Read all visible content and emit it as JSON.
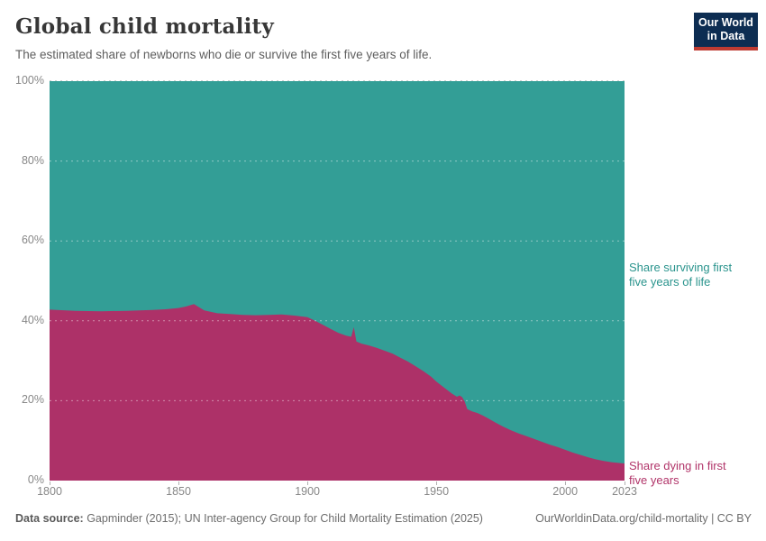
{
  "header": {
    "title": "Global child mortality",
    "subtitle": "The estimated share of newborns who die or survive the first five years of life.",
    "logo": {
      "line1": "Our World",
      "line2": "in Data",
      "bg_color": "#0d2d52",
      "accent_color": "#bf3b32"
    }
  },
  "chart_data": {
    "type": "area",
    "stacked": true,
    "percent_stacked": true,
    "title": "Global child mortality",
    "xlabel": "",
    "ylabel": "",
    "xlim": [
      1800,
      2023
    ],
    "ylim": [
      0,
      100
    ],
    "grid": "dashed horizontal gridlines at 20/40/60/80/100%",
    "legend_position": "right-side annotations next to each band",
    "x": [
      1800,
      1810,
      1820,
      1830,
      1840,
      1845,
      1850,
      1853,
      1856,
      1858,
      1860,
      1865,
      1870,
      1875,
      1880,
      1885,
      1890,
      1895,
      1900,
      1903,
      1906,
      1909,
      1912,
      1915,
      1917,
      1918,
      1919,
      1921,
      1924,
      1927,
      1930,
      1933,
      1936,
      1939,
      1942,
      1945,
      1948,
      1950,
      1952,
      1954,
      1956,
      1958,
      1959,
      1960,
      1961,
      1962,
      1964,
      1966,
      1968,
      1970,
      1973,
      1976,
      1979,
      1982,
      1985,
      1988,
      1991,
      1994,
      1997,
      2000,
      2003,
      2006,
      2009,
      2012,
      2015,
      2018,
      2021,
      2023
    ],
    "series": [
      {
        "name": "Share dying in first five years",
        "color": "#ad3168",
        "values": [
          42.8,
          42.5,
          42.4,
          42.5,
          42.7,
          42.9,
          43.2,
          43.6,
          44.2,
          43.4,
          42.6,
          41.9,
          41.7,
          41.5,
          41.4,
          41.5,
          41.6,
          41.3,
          40.9,
          40.0,
          39.0,
          38.0,
          37.0,
          36.3,
          36.0,
          38.4,
          34.8,
          34.3,
          33.8,
          33.2,
          32.5,
          31.8,
          30.8,
          29.8,
          28.6,
          27.4,
          26.0,
          24.8,
          23.8,
          22.8,
          21.8,
          21.0,
          21.3,
          20.9,
          19.8,
          17.9,
          17.3,
          16.9,
          16.3,
          15.6,
          14.5,
          13.5,
          12.6,
          11.8,
          11.1,
          10.4,
          9.7,
          9.0,
          8.4,
          7.7,
          7.0,
          6.4,
          5.8,
          5.3,
          4.9,
          4.6,
          4.4,
          4.3
        ]
      },
      {
        "name": "Share surviving first five years of life",
        "color": "#339e96",
        "values": [
          57.2,
          57.5,
          57.6,
          57.5,
          57.3,
          57.1,
          56.8,
          56.4,
          55.8,
          56.6,
          57.4,
          58.1,
          58.3,
          58.5,
          58.6,
          58.5,
          58.4,
          58.7,
          59.1,
          60.0,
          61.0,
          62.0,
          63.0,
          63.7,
          64.0,
          61.6,
          65.2,
          65.7,
          66.2,
          66.8,
          67.5,
          68.2,
          69.2,
          70.2,
          71.4,
          72.6,
          74.0,
          75.2,
          76.2,
          77.2,
          78.2,
          79.0,
          78.7,
          79.1,
          80.2,
          82.1,
          82.7,
          83.1,
          83.7,
          84.4,
          85.5,
          86.5,
          87.4,
          88.2,
          88.9,
          89.6,
          90.3,
          91.0,
          91.6,
          92.3,
          93.0,
          93.6,
          94.2,
          94.7,
          95.1,
          95.4,
          95.6,
          95.7
        ]
      }
    ],
    "x_tick_years": [
      1800,
      1850,
      1900,
      1950,
      2000,
      2023
    ],
    "x_tick_labels": [
      "1800",
      "1850",
      "1900",
      "1950",
      "2000",
      "2023"
    ],
    "y_tick_values": [
      0,
      20,
      40,
      60,
      80,
      100
    ],
    "y_tick_labels": [
      "0%",
      "20%",
      "40%",
      "60%",
      "80%",
      "100%"
    ]
  },
  "annotations": {
    "surviving": {
      "line1": "Share surviving first",
      "line2": "five years of life",
      "color": "#2a948d"
    },
    "dying": {
      "line1": "Share dying in first",
      "line2": "five years",
      "color": "#b13469"
    }
  },
  "footer": {
    "source_label": "Data source:",
    "source_text": " Gapminder (2015); UN Inter-agency Group for Child Mortality Estimation (2025)",
    "link": "OurWorldinData.org/child-mortality | CC BY"
  }
}
